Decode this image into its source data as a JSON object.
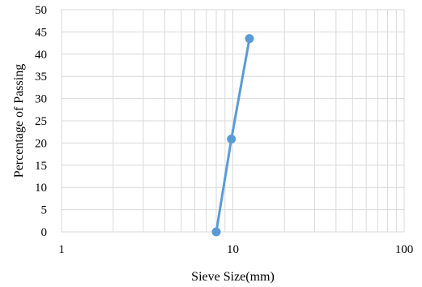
{
  "chart_data": {
    "type": "line",
    "title": "",
    "xlabel": "Sieve Size(mm)",
    "ylabel": "Percentage of Passing",
    "x_scale": "log",
    "xlim": [
      1,
      100
    ],
    "ylim": [
      0,
      50
    ],
    "x_ticks": [
      "1",
      "10",
      "100"
    ],
    "y_ticks": [
      "0",
      "5",
      "10",
      "15",
      "20",
      "25",
      "30",
      "35",
      "40",
      "45",
      "50"
    ],
    "grid": true,
    "legend": "none",
    "series": [
      {
        "color": "#5b9bd5",
        "x": [
          8,
          9.8,
          12.5
        ],
        "y": [
          0,
          20.9,
          43.5
        ]
      }
    ]
  }
}
